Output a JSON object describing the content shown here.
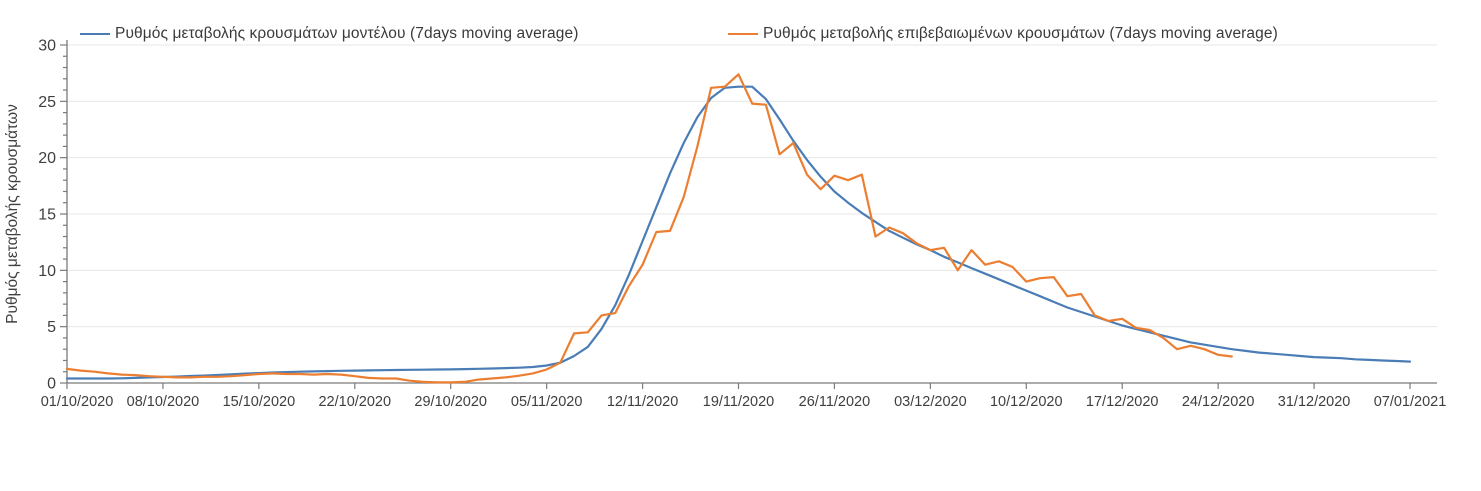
{
  "colors": {
    "model_line": "#4a7db6",
    "confirmed_line": "#ec7e32",
    "axis": "#7a7a7a",
    "gridline": "#e7e7e7",
    "text": "#3f3f3f",
    "background": "#ffffff"
  },
  "legend": [
    {
      "label": "Ρυθμός μεταβολής κρουσμάτων μοντέλου (7days moving average)",
      "color": "#4a7db6"
    },
    {
      "label": "Ρυθμός μεταβολής επιβεβαιωμένων κρουσμάτων (7days moving average)",
      "color": "#ec7e32"
    }
  ],
  "chart_data": {
    "type": "line",
    "title": "",
    "xlabel": "",
    "ylabel": "Ρυθμός μεταβολής κρουσμάτων",
    "ylim": [
      0,
      30
    ],
    "y_major_ticks": [
      0,
      5,
      10,
      15,
      20,
      25,
      30
    ],
    "y_minor_step": 1,
    "grid": "horizontal-major",
    "legend_position": "top",
    "x_unit": "days since 01/10/2020",
    "x_total_days": 98,
    "x_tick_interval_days": 7,
    "x_tick_labels": [
      "01/10/2020",
      "08/10/2020",
      "15/10/2020",
      "22/10/2020",
      "29/10/2020",
      "05/11/2020",
      "12/11/2020",
      "19/11/2020",
      "26/11/2020",
      "03/12/2020",
      "10/12/2020",
      "17/12/2020",
      "24/12/2020",
      "31/12/2020",
      "07/01/2021"
    ],
    "series": [
      {
        "name": "Ρυθμός μεταβολής κρουσμάτων μοντέλου (7days moving average)",
        "color": "#4a7db6",
        "start_day": 0,
        "values": [
          0.4,
          0.4,
          0.4,
          0.4,
          0.42,
          0.45,
          0.5,
          0.53,
          0.57,
          0.62,
          0.66,
          0.71,
          0.77,
          0.83,
          0.88,
          0.93,
          0.97,
          1.0,
          1.03,
          1.06,
          1.08,
          1.1,
          1.12,
          1.14,
          1.15,
          1.17,
          1.18,
          1.2,
          1.21,
          1.23,
          1.26,
          1.29,
          1.32,
          1.36,
          1.42,
          1.55,
          1.8,
          2.4,
          3.2,
          4.8,
          6.9,
          9.6,
          12.6,
          15.6,
          18.6,
          21.3,
          23.6,
          25.3,
          26.2,
          26.3,
          26.3,
          25.2,
          23.4,
          21.5,
          19.8,
          18.3,
          17.0,
          16.0,
          15.1,
          14.3,
          13.5,
          12.9,
          12.3,
          11.8,
          11.2,
          10.7,
          10.2,
          9.7,
          9.2,
          8.7,
          8.2,
          7.7,
          7.2,
          6.7,
          6.3,
          5.9,
          5.5,
          5.1,
          4.8,
          4.5,
          4.2,
          3.9,
          3.6,
          3.4,
          3.2,
          3.0,
          2.85,
          2.7,
          2.6,
          2.5,
          2.4,
          2.3,
          2.25,
          2.2,
          2.1,
          2.05,
          2.0,
          1.95,
          1.9
        ]
      },
      {
        "name": "Ρυθμός μεταβολής επιβεβαιωμένων κρουσμάτων (7days moving average)",
        "color": "#ec7e32",
        "start_day": 0,
        "values": [
          1.25,
          1.1,
          1.0,
          0.85,
          0.75,
          0.7,
          0.6,
          0.55,
          0.5,
          0.5,
          0.55,
          0.55,
          0.6,
          0.7,
          0.8,
          0.85,
          0.8,
          0.8,
          0.75,
          0.8,
          0.75,
          0.6,
          0.45,
          0.4,
          0.4,
          0.2,
          0.1,
          0.05,
          0.05,
          0.1,
          0.3,
          0.4,
          0.5,
          0.65,
          0.85,
          1.2,
          1.8,
          4.4,
          4.5,
          6.0,
          6.2,
          8.6,
          10.5,
          13.4,
          13.5,
          16.5,
          21.0,
          26.2,
          26.3,
          27.4,
          24.8,
          24.7,
          20.3,
          21.3,
          18.5,
          17.2,
          18.4,
          18.0,
          18.5,
          13.0,
          13.8,
          13.3,
          12.4,
          11.8,
          12.0,
          10.0,
          11.8,
          10.5,
          10.8,
          10.3,
          9.0,
          9.3,
          9.4,
          7.7,
          7.9,
          6.0,
          5.5,
          5.7,
          4.9,
          4.7,
          4.0,
          3.0,
          3.3,
          3.0,
          2.5,
          2.35
        ]
      }
    ]
  }
}
